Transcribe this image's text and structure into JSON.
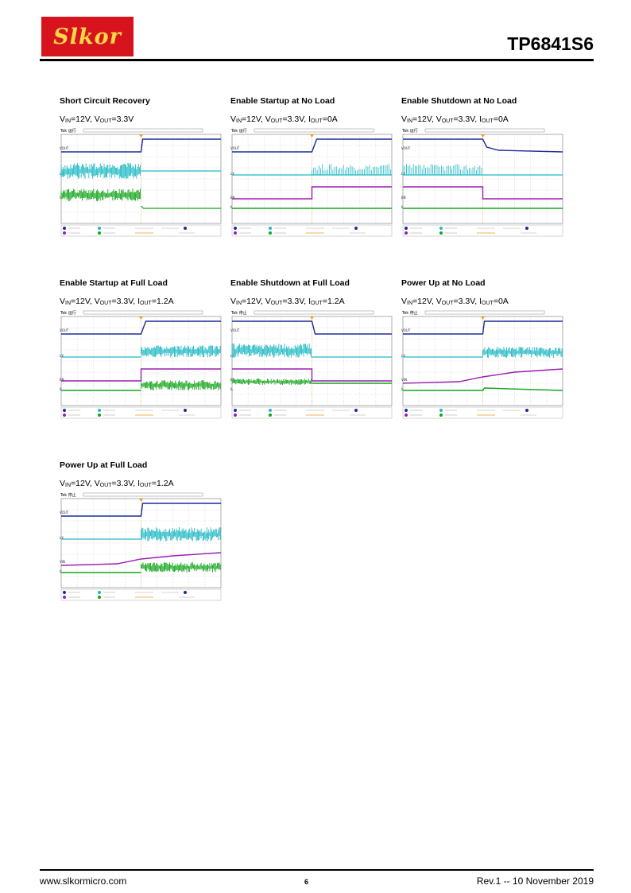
{
  "header": {
    "logo_text": "Slkor",
    "part_number": "TP6841S6"
  },
  "figures": [
    {
      "title": "Short Circuit Recovery",
      "vin": "12V",
      "vout": "3.3V",
      "iout": null,
      "scope": {
        "status": "运行",
        "channels": [
          "VOUT",
          "LX",
          "IL"
        ],
        "traces": [
          "blue-step-up",
          "cyan-noise-then-flat",
          "green-noise-then-drop"
        ]
      }
    },
    {
      "title": "Enable Startup at No Load",
      "vin": "12V",
      "vout": "3.3V",
      "iout": "0A",
      "scope": {
        "status": "运行",
        "channels": [
          "VOUT",
          "LX",
          "EN",
          "IL"
        ],
        "traces": [
          "blue-rise",
          "cyan-flat-then-spikes",
          "purple-step-up",
          "green-flat"
        ]
      }
    },
    {
      "title": "Enable Shutdown at No Load",
      "vin": "12V",
      "vout": "3.3V",
      "iout": "0A",
      "scope": {
        "status": "运行",
        "channels": [
          "VOUT",
          "LX",
          "EN",
          "IL"
        ],
        "traces": [
          "blue-decay",
          "cyan-spikes-then-flat",
          "purple-step-down",
          "green-flat"
        ]
      }
    },
    {
      "title": "Enable Startup at Full Load",
      "vin": "12V",
      "vout": "3.3V",
      "iout": "1.2A",
      "scope": {
        "status": "运行",
        "channels": [
          "VOUT",
          "LX",
          "EN",
          "IL"
        ],
        "traces": [
          "blue-rise",
          "cyan-flat-then-band",
          "purple-step-up",
          "green-rise-band"
        ]
      }
    },
    {
      "title": "Enable Shutdown at Full Load",
      "vin": "12V",
      "vout": "3.3V",
      "iout": "1.2A",
      "scope": {
        "status": "停止",
        "channels": [
          "VOUT",
          "LX",
          "EN",
          "IL"
        ],
        "traces": [
          "blue-fall",
          "cyan-band-then-flat",
          "purple-step-down",
          "green-band-then-flat"
        ]
      }
    },
    {
      "title": "Power Up at No Load",
      "vin": "12V",
      "vout": "3.3V",
      "iout": "0A",
      "scope": {
        "status": "停止",
        "channels": [
          "VOUT",
          "LX",
          "VIN",
          "IL"
        ],
        "traces": [
          "blue-rise",
          "cyan-flat-then-growing-band",
          "purple-ramp",
          "green-flat"
        ]
      }
    },
    {
      "title": "Power Up at Full Load",
      "vin": "12V",
      "vout": "3.3V",
      "iout": "1.2A",
      "scope": {
        "status": "停止",
        "channels": [
          "VOUT",
          "LX",
          "VIN",
          "IL"
        ],
        "traces": [
          "blue-rise",
          "cyan-flat-then-growing-band",
          "purple-ramp",
          "green-rise-band"
        ]
      }
    }
  ],
  "footer": {
    "website": "www.slkormicro.com",
    "page": "6",
    "revision": "Rev.1 -- 10 November 2019"
  }
}
